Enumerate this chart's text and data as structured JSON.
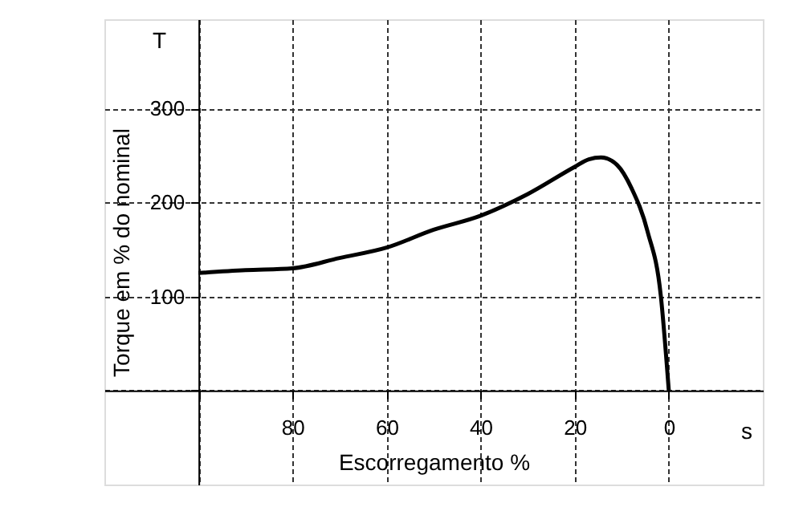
{
  "chart_data": {
    "type": "line",
    "xlabel": "Escorregamento %",
    "ylabel": "Torque em % do nominal",
    "annotations": [
      "T",
      "s"
    ],
    "x": [
      100,
      90,
      80,
      70,
      60,
      50,
      40,
      30,
      20,
      17,
      14.4,
      11,
      7.9,
      4.5,
      1.7,
      0
    ],
    "series": [
      {
        "color": "#000000",
        "values": [
          125,
          128,
          130,
          141,
          152,
          171,
          186,
          209,
          238,
          246,
          248,
          240,
          215,
          169,
          101,
          0
        ]
      }
    ],
    "xlim": [
      120,
      -20
    ],
    "ylim": [
      -100,
      395
    ],
    "xticks": [
      {
        "value": 100,
        "label": null
      },
      80,
      60,
      40,
      20,
      0
    ],
    "yticks": [
      {
        "value": 0,
        "label": null
      },
      100,
      200,
      300
    ],
    "grid": true,
    "line_style": "solid",
    "marker": "none"
  }
}
